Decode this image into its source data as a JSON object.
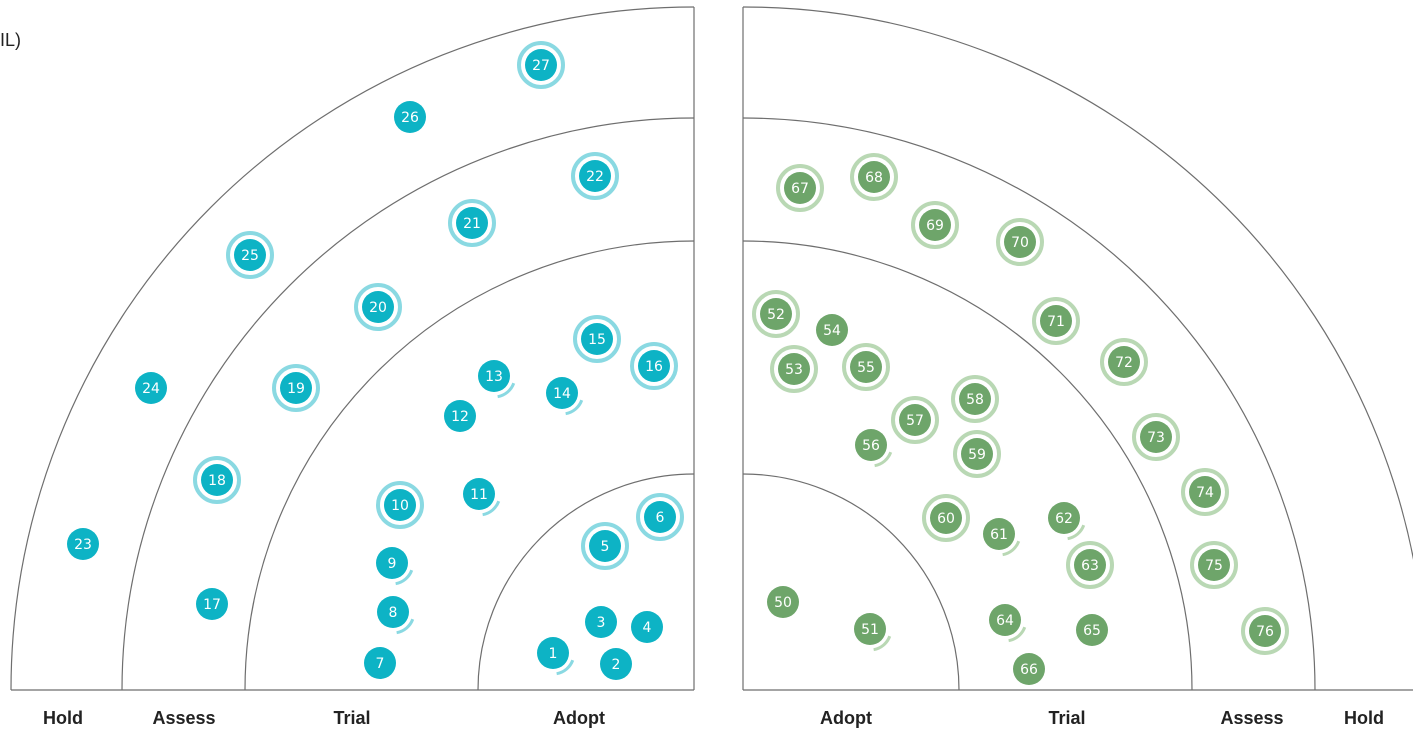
{
  "clipped_text": "IL)",
  "colors": {
    "teal": "#0db3c5",
    "teal_ring": "#8ad9e2",
    "green": "#6ea56a",
    "green_ring": "#b9d8b4",
    "rings": "#6e6e6e"
  },
  "left_quadrant": {
    "ring_labels": [
      "Hold",
      "Assess",
      "Trial",
      "Adopt"
    ],
    "blips": [
      {
        "id": "1",
        "ring": "Adopt",
        "marker": "moved-in"
      },
      {
        "id": "2",
        "ring": "Adopt",
        "marker": "none"
      },
      {
        "id": "3",
        "ring": "Adopt",
        "marker": "none"
      },
      {
        "id": "4",
        "ring": "Adopt",
        "marker": "none"
      },
      {
        "id": "5",
        "ring": "Adopt",
        "marker": "new"
      },
      {
        "id": "6",
        "ring": "Adopt",
        "marker": "new"
      },
      {
        "id": "7",
        "ring": "Trial",
        "marker": "none"
      },
      {
        "id": "8",
        "ring": "Trial",
        "marker": "moved-in"
      },
      {
        "id": "9",
        "ring": "Trial",
        "marker": "moved-in"
      },
      {
        "id": "10",
        "ring": "Trial",
        "marker": "new"
      },
      {
        "id": "11",
        "ring": "Trial",
        "marker": "moved-in"
      },
      {
        "id": "12",
        "ring": "Trial",
        "marker": "none"
      },
      {
        "id": "13",
        "ring": "Trial",
        "marker": "moved-in"
      },
      {
        "id": "14",
        "ring": "Trial",
        "marker": "moved-in"
      },
      {
        "id": "15",
        "ring": "Trial",
        "marker": "new"
      },
      {
        "id": "16",
        "ring": "Trial",
        "marker": "new"
      },
      {
        "id": "17",
        "ring": "Assess",
        "marker": "none"
      },
      {
        "id": "18",
        "ring": "Assess",
        "marker": "new"
      },
      {
        "id": "19",
        "ring": "Assess",
        "marker": "new"
      },
      {
        "id": "20",
        "ring": "Assess",
        "marker": "new"
      },
      {
        "id": "21",
        "ring": "Assess",
        "marker": "new"
      },
      {
        "id": "22",
        "ring": "Assess",
        "marker": "new"
      },
      {
        "id": "23",
        "ring": "Hold",
        "marker": "none"
      },
      {
        "id": "24",
        "ring": "Hold",
        "marker": "none"
      },
      {
        "id": "25",
        "ring": "Hold",
        "marker": "new"
      },
      {
        "id": "26",
        "ring": "Hold",
        "marker": "none"
      },
      {
        "id": "27",
        "ring": "Hold",
        "marker": "new"
      }
    ]
  },
  "right_quadrant": {
    "ring_labels": [
      "Adopt",
      "Trial",
      "Assess",
      "Hold"
    ],
    "blips": [
      {
        "id": "50",
        "ring": "Adopt",
        "marker": "none"
      },
      {
        "id": "51",
        "ring": "Adopt",
        "marker": "moved-in"
      },
      {
        "id": "52",
        "ring": "Trial",
        "marker": "new"
      },
      {
        "id": "53",
        "ring": "Trial",
        "marker": "new"
      },
      {
        "id": "54",
        "ring": "Trial",
        "marker": "none"
      },
      {
        "id": "55",
        "ring": "Trial",
        "marker": "new"
      },
      {
        "id": "56",
        "ring": "Trial",
        "marker": "moved-in"
      },
      {
        "id": "57",
        "ring": "Trial",
        "marker": "new"
      },
      {
        "id": "58",
        "ring": "Trial",
        "marker": "new"
      },
      {
        "id": "59",
        "ring": "Trial",
        "marker": "new"
      },
      {
        "id": "60",
        "ring": "Trial",
        "marker": "new"
      },
      {
        "id": "61",
        "ring": "Trial",
        "marker": "moved-in"
      },
      {
        "id": "62",
        "ring": "Trial",
        "marker": "moved-in"
      },
      {
        "id": "63",
        "ring": "Trial",
        "marker": "new"
      },
      {
        "id": "64",
        "ring": "Trial",
        "marker": "moved-in"
      },
      {
        "id": "65",
        "ring": "Trial",
        "marker": "none"
      },
      {
        "id": "66",
        "ring": "Trial",
        "marker": "none"
      },
      {
        "id": "67",
        "ring": "Assess",
        "marker": "new"
      },
      {
        "id": "68",
        "ring": "Assess",
        "marker": "new"
      },
      {
        "id": "69",
        "ring": "Assess",
        "marker": "new"
      },
      {
        "id": "70",
        "ring": "Assess",
        "marker": "new"
      },
      {
        "id": "71",
        "ring": "Assess",
        "marker": "new"
      },
      {
        "id": "72",
        "ring": "Assess",
        "marker": "new"
      },
      {
        "id": "73",
        "ring": "Assess",
        "marker": "new"
      },
      {
        "id": "74",
        "ring": "Assess",
        "marker": "new"
      },
      {
        "id": "75",
        "ring": "Assess",
        "marker": "new"
      },
      {
        "id": "76",
        "ring": "Assess",
        "marker": "new"
      }
    ]
  }
}
